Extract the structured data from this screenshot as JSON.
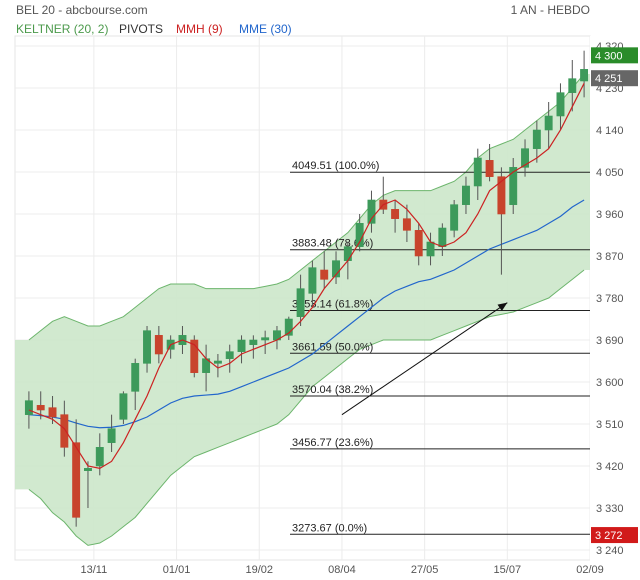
{
  "header": {
    "title": "BEL 20 - abcbourse.com",
    "period": "1 AN - HEBDO",
    "legend": [
      {
        "label": "KELTNER (20, 2)",
        "color": "#4c9a4c"
      },
      {
        "label": "PIVOTS",
        "color": "#333333"
      },
      {
        "label": "MMH (9)",
        "color": "#cc2222"
      },
      {
        "label": "MME (30)",
        "color": "#2266cc"
      }
    ]
  },
  "badges": {
    "upper": {
      "text": "4 300",
      "value": 4300,
      "color": "#2a8c2a"
    },
    "mid": {
      "text": "4 251",
      "value": 4251,
      "color": "#666666"
    },
    "lower": {
      "text": "3 272",
      "value": 3272,
      "color": "#d11a1a"
    }
  },
  "colors": {
    "up": "#3d9a5b",
    "down": "#c8442c",
    "keltner_fill": "#cfe8cc",
    "keltner_line": "#6cb56c",
    "mmh": "#cc2222",
    "mme": "#2266cc"
  },
  "chart_data": {
    "type": "candlestick",
    "ylim": [
      3240,
      4320
    ],
    "y_ticks": [
      "4 320",
      "4 230",
      "4 140",
      "4 050",
      "3 960",
      "3 870",
      "3 780",
      "3 690",
      "3 600",
      "3 510",
      "3 420",
      "3 330",
      "3 240"
    ],
    "y_tick_values": [
      4320,
      4230,
      4140,
      4050,
      3960,
      3870,
      3780,
      3690,
      3600,
      3510,
      3420,
      3330,
      3240
    ],
    "x_ticks": [
      "13/11",
      "01/01",
      "19/02",
      "08/04",
      "27/05",
      "15/07",
      "02/09"
    ],
    "x_tick_index": [
      5.5,
      12.5,
      19.5,
      26.5,
      33.5,
      40.5,
      47.5
    ],
    "candles": [
      {
        "o": 3530,
        "h": 3580,
        "l": 3500,
        "c": 3560
      },
      {
        "o": 3550,
        "h": 3580,
        "l": 3520,
        "c": 3540
      },
      {
        "o": 3545,
        "h": 3570,
        "l": 3510,
        "c": 3525
      },
      {
        "o": 3530,
        "h": 3560,
        "l": 3440,
        "c": 3460
      },
      {
        "o": 3470,
        "h": 3520,
        "l": 3290,
        "c": 3310
      },
      {
        "o": 3410,
        "h": 3430,
        "l": 3330,
        "c": 3415
      },
      {
        "o": 3420,
        "h": 3490,
        "l": 3400,
        "c": 3460
      },
      {
        "o": 3470,
        "h": 3530,
        "l": 3450,
        "c": 3500
      },
      {
        "o": 3520,
        "h": 3580,
        "l": 3510,
        "c": 3575
      },
      {
        "o": 3580,
        "h": 3650,
        "l": 3540,
        "c": 3640
      },
      {
        "o": 3640,
        "h": 3720,
        "l": 3620,
        "c": 3710
      },
      {
        "o": 3700,
        "h": 3720,
        "l": 3640,
        "c": 3660
      },
      {
        "o": 3670,
        "h": 3700,
        "l": 3650,
        "c": 3690
      },
      {
        "o": 3680,
        "h": 3720,
        "l": 3660,
        "c": 3700
      },
      {
        "o": 3690,
        "h": 3700,
        "l": 3610,
        "c": 3620
      },
      {
        "o": 3620,
        "h": 3680,
        "l": 3580,
        "c": 3650
      },
      {
        "o": 3640,
        "h": 3660,
        "l": 3610,
        "c": 3645
      },
      {
        "o": 3650,
        "h": 3680,
        "l": 3620,
        "c": 3665
      },
      {
        "o": 3665,
        "h": 3700,
        "l": 3640,
        "c": 3690
      },
      {
        "o": 3680,
        "h": 3700,
        "l": 3650,
        "c": 3690
      },
      {
        "o": 3690,
        "h": 3710,
        "l": 3660,
        "c": 3695
      },
      {
        "o": 3690,
        "h": 3720,
        "l": 3670,
        "c": 3710
      },
      {
        "o": 3700,
        "h": 3740,
        "l": 3690,
        "c": 3735
      },
      {
        "o": 3740,
        "h": 3830,
        "l": 3720,
        "c": 3800
      },
      {
        "o": 3790,
        "h": 3860,
        "l": 3760,
        "c": 3845
      },
      {
        "o": 3840,
        "h": 3880,
        "l": 3800,
        "c": 3820
      },
      {
        "o": 3825,
        "h": 3880,
        "l": 3810,
        "c": 3860
      },
      {
        "o": 3860,
        "h": 3900,
        "l": 3820,
        "c": 3890
      },
      {
        "o": 3890,
        "h": 3960,
        "l": 3880,
        "c": 3940
      },
      {
        "o": 3940,
        "h": 4010,
        "l": 3920,
        "c": 3990
      },
      {
        "o": 3990,
        "h": 4040,
        "l": 3960,
        "c": 3970
      },
      {
        "o": 3970,
        "h": 3990,
        "l": 3920,
        "c": 3950
      },
      {
        "o": 3950,
        "h": 3980,
        "l": 3900,
        "c": 3925
      },
      {
        "o": 3925,
        "h": 3940,
        "l": 3850,
        "c": 3870
      },
      {
        "o": 3870,
        "h": 3920,
        "l": 3850,
        "c": 3900
      },
      {
        "o": 3890,
        "h": 3940,
        "l": 3870,
        "c": 3930
      },
      {
        "o": 3925,
        "h": 3990,
        "l": 3910,
        "c": 3980
      },
      {
        "o": 3980,
        "h": 4040,
        "l": 3960,
        "c": 4020
      },
      {
        "o": 4020,
        "h": 4100,
        "l": 3990,
        "c": 4080
      },
      {
        "o": 4075,
        "h": 4110,
        "l": 4030,
        "c": 4040
      },
      {
        "o": 4040,
        "h": 4060,
        "l": 3830,
        "c": 3960
      },
      {
        "o": 3980,
        "h": 4080,
        "l": 3960,
        "c": 4060
      },
      {
        "o": 4060,
        "h": 4120,
        "l": 4040,
        "c": 4100
      },
      {
        "o": 4100,
        "h": 4160,
        "l": 4070,
        "c": 4140
      },
      {
        "o": 4140,
        "h": 4200,
        "l": 4100,
        "c": 4170
      },
      {
        "o": 4170,
        "h": 4240,
        "l": 4140,
        "c": 4220
      },
      {
        "o": 4220,
        "h": 4290,
        "l": 4180,
        "c": 4250
      },
      {
        "o": 4245,
        "h": 4310,
        "l": 4210,
        "c": 4270
      }
    ],
    "keltner_upper": [
      3690,
      3710,
      3730,
      3740,
      3730,
      3720,
      3720,
      3730,
      3740,
      3760,
      3780,
      3800,
      3810,
      3810,
      3810,
      3800,
      3800,
      3800,
      3800,
      3800,
      3805,
      3810,
      3820,
      3840,
      3860,
      3880,
      3900,
      3920,
      3950,
      3980,
      4000,
      4010,
      4010,
      4010,
      4010,
      4020,
      4030,
      4050,
      4080,
      4100,
      4110,
      4120,
      4140,
      4160,
      4180,
      4200,
      4230,
      4260
    ],
    "keltner_lower": [
      3370,
      3350,
      3320,
      3300,
      3270,
      3250,
      3255,
      3270,
      3290,
      3310,
      3340,
      3370,
      3400,
      3420,
      3440,
      3450,
      3460,
      3470,
      3480,
      3490,
      3500,
      3510,
      3530,
      3560,
      3590,
      3610,
      3630,
      3650,
      3670,
      3680,
      3690,
      3690,
      3690,
      3690,
      3690,
      3700,
      3710,
      3720,
      3730,
      3740,
      3745,
      3750,
      3760,
      3770,
      3780,
      3800,
      3820,
      3840
    ],
    "mmh": [
      3540,
      3530,
      3520,
      3500,
      3460,
      3420,
      3415,
      3430,
      3470,
      3520,
      3570,
      3630,
      3680,
      3690,
      3680,
      3650,
      3630,
      3640,
      3660,
      3670,
      3680,
      3690,
      3705,
      3730,
      3760,
      3800,
      3830,
      3860,
      3900,
      3950,
      3980,
      3990,
      3970,
      3940,
      3900,
      3890,
      3900,
      3920,
      3960,
      4010,
      4030,
      4050,
      4065,
      4080,
      4100,
      4140,
      4190,
      4240
    ],
    "mme": [
      3530,
      3528,
      3525,
      3520,
      3512,
      3505,
      3502,
      3503,
      3507,
      3515,
      3525,
      3540,
      3555,
      3565,
      3570,
      3572,
      3574,
      3580,
      3590,
      3600,
      3610,
      3620,
      3630,
      3645,
      3660,
      3680,
      3700,
      3720,
      3740,
      3760,
      3780,
      3795,
      3805,
      3815,
      3820,
      3830,
      3840,
      3855,
      3870,
      3885,
      3895,
      3905,
      3915,
      3925,
      3940,
      3955,
      3975,
      3990
    ],
    "fibonacci": [
      {
        "label": "4049.51 (100.0%)",
        "value": 4049.51
      },
      {
        "label": "3883.48 (78.6%)",
        "value": 3883.48
      },
      {
        "label": "3753.14 (61.8%)",
        "value": 3753.14
      },
      {
        "label": "3661.59 (50.0%)",
        "value": 3661.59
      },
      {
        "label": "3570.04 (38.2%)",
        "value": 3570.04
      },
      {
        "label": "3456.77 (23.6%)",
        "value": 3456.77
      },
      {
        "label": "3273.67 (0.0%)",
        "value": 3273.67
      }
    ],
    "arrow": {
      "from": {
        "index": 26.5,
        "value": 3530
      },
      "to": {
        "index": 40.5,
        "value": 3770
      }
    }
  }
}
